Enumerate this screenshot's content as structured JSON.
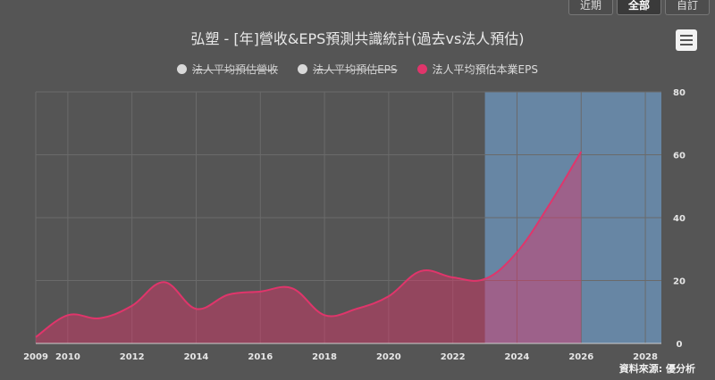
{
  "tabs": [
    "近期",
    "全部",
    "自訂"
  ],
  "active_tab": 1,
  "title": "弘塑 - [年]營收&EPS預測共識統計(過去vs法人預估)",
  "source": "資料來源: 優分析",
  "menu_icon": "hamburger-menu-icon",
  "legend": [
    {
      "label": "法人平均預估營收",
      "color": "#d9d9d9",
      "enabled": false
    },
    {
      "label": "法人平均預估EPS",
      "color": "#d9d9d9",
      "enabled": false
    },
    {
      "label": "法人平均預估本業EPS",
      "color": "#e0356b",
      "enabled": true
    }
  ],
  "chart_data": {
    "type": "area",
    "title": "弘塑 - [年]營收&EPS預測共識統計(過去vs法人預估)",
    "x_ticks": [
      2009,
      2010,
      2012,
      2014,
      2016,
      2018,
      2020,
      2022,
      2024,
      2026,
      2028
    ],
    "xlim": [
      2009,
      2028.5
    ],
    "y_ticks": [
      0,
      20,
      40,
      60,
      80
    ],
    "ylim": [
      0,
      80
    ],
    "y_axis_side": "right",
    "grid": true,
    "forecast_band": {
      "from": 2023,
      "to": 2028.5,
      "color": "#6b8fb3"
    },
    "series": [
      {
        "name": "法人平均預估本業EPS",
        "color": "#e0356b",
        "x": [
          2009,
          2010,
          2011,
          2012,
          2013,
          2014,
          2015,
          2016,
          2017,
          2018,
          2019,
          2020,
          2021,
          2022,
          2023,
          2024,
          2025,
          2026
        ],
        "values": [
          2,
          9,
          8,
          12,
          19.5,
          11,
          15.5,
          16.5,
          17.5,
          9,
          11,
          15,
          23,
          21,
          20.5,
          29,
          44,
          61
        ]
      }
    ]
  }
}
